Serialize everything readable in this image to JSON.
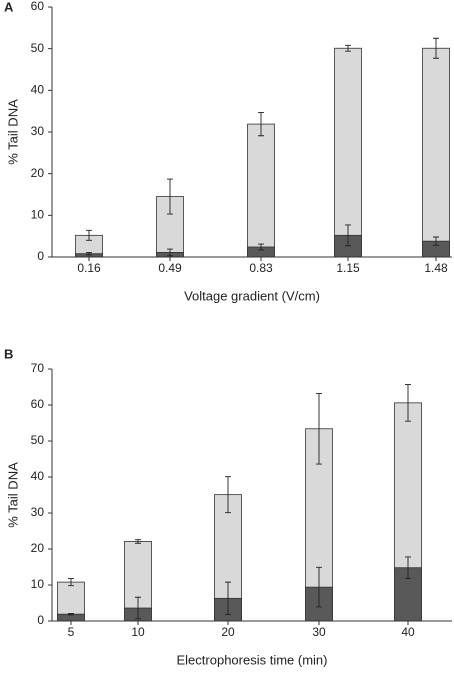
{
  "chart_data": [
    {
      "type": "bar",
      "panel": "A",
      "ylabel": "% Tail DNA",
      "xlabel": "Voltage gradient (V/cm)",
      "categories": [
        "0.16",
        "0.49",
        "0.83",
        "1.15",
        "1.48"
      ],
      "series": [
        {
          "color": "#d9d9d9",
          "values": [
            5.2,
            14.5,
            31.9,
            50.1,
            50.1
          ],
          "errors": [
            1.2,
            4.2,
            2.8,
            0.7,
            2.4
          ]
        },
        {
          "color": "#595959",
          "values": [
            0.8,
            1.1,
            2.4,
            5.2,
            3.8
          ],
          "errors": [
            0.3,
            0.8,
            0.7,
            2.5,
            1.0
          ]
        }
      ],
      "ylim": [
        0,
        60
      ],
      "yticks": [
        0,
        10,
        20,
        30,
        40,
        50,
        60
      ]
    },
    {
      "type": "bar",
      "panel": "B",
      "ylabel": "% Tail DNA",
      "xlabel": "Electrophoresis time (min)",
      "categories": [
        "5",
        "10",
        "20",
        "30",
        "40"
      ],
      "series": [
        {
          "color": "#d9d9d9",
          "values": [
            10.8,
            22.1,
            35.1,
            53.4,
            60.6
          ],
          "errors": [
            1.0,
            0.5,
            5.0,
            9.8,
            5.1
          ]
        },
        {
          "color": "#595959",
          "values": [
            1.9,
            3.6,
            6.3,
            9.4,
            14.8
          ],
          "errors": [
            0.2,
            3.0,
            4.5,
            5.5,
            3.0
          ]
        }
      ],
      "ylim": [
        0,
        70
      ],
      "yticks": [
        0,
        10,
        20,
        30,
        40,
        50,
        60,
        70
      ]
    }
  ]
}
